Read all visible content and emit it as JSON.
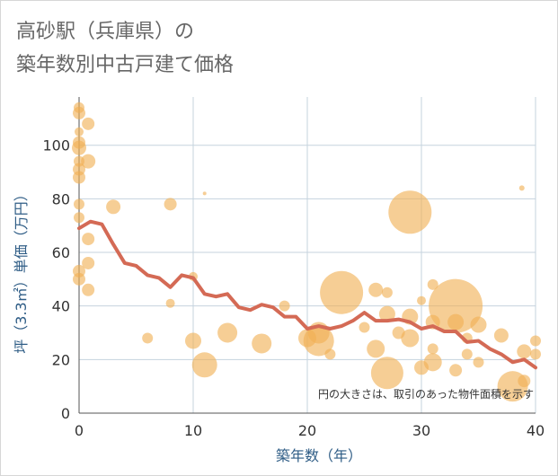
{
  "title_line1": "高砂駅（兵庫県）の",
  "title_line2": "築年数別中古戸建て価格",
  "chart_data": {
    "type": "scatter",
    "title": "高砂駅（兵庫県）の 築年数別中古戸建て価格",
    "xlabel": "築年数（年）",
    "ylabel": "坪（3.3㎡）単価（万円）",
    "xlim": [
      0,
      40
    ],
    "ylim": [
      0,
      118
    ],
    "xticks": [
      0,
      10,
      20,
      30,
      40
    ],
    "yticks": [
      0,
      20,
      40,
      60,
      80,
      100
    ],
    "grid": true,
    "note": "円の大きさは、取引のあった物件面積を示す",
    "colors": {
      "bubble": "#f0b054",
      "line": "#d46a55",
      "grid": "#c5d3de"
    },
    "series": [
      {
        "kind": "line",
        "x": [
          0,
          1,
          2,
          3,
          4,
          5,
          6,
          7,
          8,
          9,
          10,
          11,
          12,
          13,
          14,
          15,
          16,
          17,
          18,
          19,
          20,
          21,
          22,
          23,
          24,
          25,
          26,
          27,
          28,
          29,
          30,
          31,
          32,
          33,
          34,
          35,
          36,
          37,
          38,
          39,
          40
        ],
        "y": [
          69,
          71.5,
          70.5,
          63,
          56,
          55,
          51.5,
          50.5,
          47,
          51.5,
          50.5,
          44.5,
          43.5,
          44.5,
          39.5,
          38.5,
          40.5,
          39.5,
          36,
          36,
          31.5,
          32.5,
          31.5,
          32.5,
          34.5,
          37.5,
          34.5,
          34.5,
          35,
          34,
          31.5,
          32.5,
          30.5,
          30.5,
          26.5,
          27,
          24,
          22,
          19,
          20,
          17
        ]
      },
      {
        "kind": "bubble",
        "points": [
          {
            "x": 0,
            "y": 114,
            "s": 6
          },
          {
            "x": 0,
            "y": 112,
            "s": 7
          },
          {
            "x": 0,
            "y": 105,
            "s": 5
          },
          {
            "x": 0,
            "y": 101,
            "s": 7
          },
          {
            "x": 0,
            "y": 99,
            "s": 8
          },
          {
            "x": 0,
            "y": 94,
            "s": 6
          },
          {
            "x": 0,
            "y": 91,
            "s": 7
          },
          {
            "x": 0,
            "y": 88,
            "s": 7
          },
          {
            "x": 0,
            "y": 78,
            "s": 6
          },
          {
            "x": 0,
            "y": 73,
            "s": 6
          },
          {
            "x": 0,
            "y": 53,
            "s": 7
          },
          {
            "x": 0,
            "y": 50,
            "s": 7
          },
          {
            "x": 0.8,
            "y": 108,
            "s": 7
          },
          {
            "x": 0.8,
            "y": 94,
            "s": 8
          },
          {
            "x": 0.8,
            "y": 65,
            "s": 7
          },
          {
            "x": 0.8,
            "y": 56,
            "s": 7
          },
          {
            "x": 0.8,
            "y": 46,
            "s": 7
          },
          {
            "x": 3,
            "y": 77,
            "s": 8
          },
          {
            "x": 6,
            "y": 28,
            "s": 6
          },
          {
            "x": 8,
            "y": 78,
            "s": 7
          },
          {
            "x": 8,
            "y": 41,
            "s": 5
          },
          {
            "x": 10,
            "y": 51,
            "s": 5
          },
          {
            "x": 10,
            "y": 27,
            "s": 9
          },
          {
            "x": 11,
            "y": 82,
            "s": 2
          },
          {
            "x": 11,
            "y": 18,
            "s": 14
          },
          {
            "x": 13,
            "y": 30,
            "s": 11
          },
          {
            "x": 16,
            "y": 26,
            "s": 11
          },
          {
            "x": 18,
            "y": 40,
            "s": 6
          },
          {
            "x": 20,
            "y": 28,
            "s": 10
          },
          {
            "x": 21,
            "y": 30,
            "s": 12
          },
          {
            "x": 21,
            "y": 27,
            "s": 17
          },
          {
            "x": 22,
            "y": 22,
            "s": 6
          },
          {
            "x": 23,
            "y": 45,
            "s": 24
          },
          {
            "x": 25,
            "y": 32,
            "s": 6
          },
          {
            "x": 26,
            "y": 46,
            "s": 8
          },
          {
            "x": 26,
            "y": 24,
            "s": 10
          },
          {
            "x": 27,
            "y": 45,
            "s": 6
          },
          {
            "x": 27,
            "y": 37,
            "s": 9
          },
          {
            "x": 27,
            "y": 15,
            "s": 18
          },
          {
            "x": 28,
            "y": 30,
            "s": 7
          },
          {
            "x": 29,
            "y": 75,
            "s": 24
          },
          {
            "x": 29,
            "y": 36,
            "s": 9
          },
          {
            "x": 29,
            "y": 28,
            "s": 10
          },
          {
            "x": 30,
            "y": 42,
            "s": 5
          },
          {
            "x": 30,
            "y": 17,
            "s": 8
          },
          {
            "x": 31,
            "y": 48,
            "s": 6
          },
          {
            "x": 31,
            "y": 34,
            "s": 8
          },
          {
            "x": 31,
            "y": 24,
            "s": 6
          },
          {
            "x": 31,
            "y": 19,
            "s": 10
          },
          {
            "x": 33,
            "y": 40,
            "s": 30
          },
          {
            "x": 33,
            "y": 34,
            "s": 9
          },
          {
            "x": 33,
            "y": 16,
            "s": 7
          },
          {
            "x": 34,
            "y": 28,
            "s": 6
          },
          {
            "x": 34,
            "y": 22,
            "s": 6
          },
          {
            "x": 35,
            "y": 33,
            "s": 9
          },
          {
            "x": 35,
            "y": 19,
            "s": 6
          },
          {
            "x": 37,
            "y": 29,
            "s": 8
          },
          {
            "x": 38,
            "y": 10,
            "s": 17
          },
          {
            "x": 38.8,
            "y": 84,
            "s": 3
          },
          {
            "x": 39,
            "y": 23,
            "s": 8
          },
          {
            "x": 39,
            "y": 12,
            "s": 7
          },
          {
            "x": 40,
            "y": 27,
            "s": 6
          },
          {
            "x": 40,
            "y": 22,
            "s": 6
          }
        ]
      }
    ]
  }
}
